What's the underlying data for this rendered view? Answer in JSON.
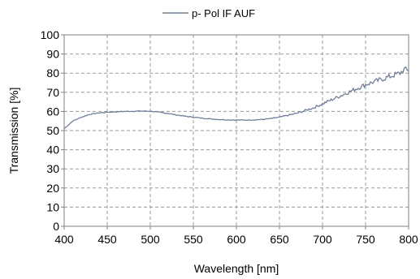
{
  "chart_data": {
    "type": "line",
    "xlabel": "Wavelength [nm]",
    "ylabel": "Transmission [%]",
    "xlim": [
      400,
      800
    ],
    "ylim": [
      0,
      100
    ],
    "xticks": [
      "400",
      "450",
      "500",
      "550",
      "600",
      "650",
      "700",
      "750",
      "800"
    ],
    "yticks": [
      "0",
      "10",
      "20",
      "30",
      "40",
      "50",
      "60",
      "70",
      "80",
      "90",
      "100"
    ],
    "grid": true,
    "legend_position": "top-center",
    "series": [
      {
        "name": "p- Pol IF AUF",
        "color": "#6f7f99",
        "x": [
          400,
          405,
          410,
          420,
          430,
          440,
          450,
          460,
          470,
          480,
          490,
          500,
          510,
          520,
          530,
          540,
          550,
          560,
          570,
          580,
          590,
          600,
          610,
          620,
          630,
          640,
          650,
          660,
          670,
          680,
          690,
          700,
          710,
          720,
          730,
          740,
          750,
          760,
          770,
          780,
          790,
          795,
          800
        ],
        "y": [
          51,
          53,
          55,
          57,
          58.5,
          59.2,
          59.6,
          59.8,
          60,
          60.1,
          60.2,
          60.1,
          59.6,
          59,
          58.2,
          57.5,
          57,
          56.5,
          56.1,
          55.8,
          55.6,
          55.5,
          55.5,
          55.6,
          55.8,
          56.3,
          57,
          58,
          59,
          60.5,
          62,
          64,
          66,
          68,
          70,
          72,
          74,
          75.5,
          77,
          78.5,
          80,
          82,
          81
        ]
      }
    ]
  }
}
